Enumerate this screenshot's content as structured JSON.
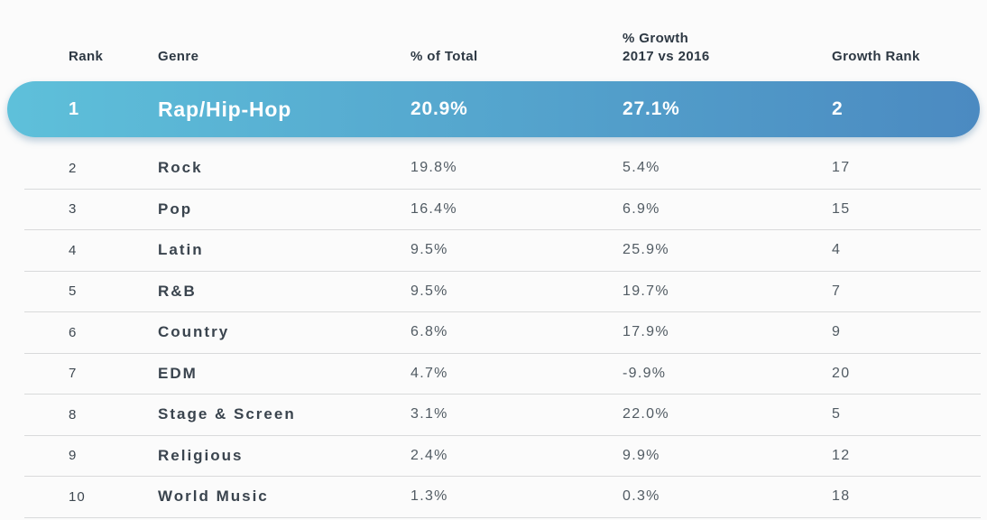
{
  "table": {
    "headers": {
      "rank": "Rank",
      "genre": "Genre",
      "pct_total": "% of Total",
      "growth_line1": "% Growth",
      "growth_line2": "2017 vs 2016",
      "growth_rank": "Growth Rank"
    },
    "highlight": {
      "rank": "1",
      "genre": "Rap/Hip-Hop",
      "pct_total": "20.9%",
      "growth": "27.1%",
      "growth_rank": "2"
    },
    "rows": [
      {
        "rank": "2",
        "genre": "Rock",
        "pct_total": "19.8%",
        "growth": "5.4%",
        "growth_rank": "17"
      },
      {
        "rank": "3",
        "genre": "Pop",
        "pct_total": "16.4%",
        "growth": "6.9%",
        "growth_rank": "15"
      },
      {
        "rank": "4",
        "genre": "Latin",
        "pct_total": "9.5%",
        "growth": "25.9%",
        "growth_rank": "4"
      },
      {
        "rank": "5",
        "genre": "R&B",
        "pct_total": "9.5%",
        "growth": "19.7%",
        "growth_rank": "7"
      },
      {
        "rank": "6",
        "genre": "Country",
        "pct_total": "6.8%",
        "growth": "17.9%",
        "growth_rank": "9"
      },
      {
        "rank": "7",
        "genre": "EDM",
        "pct_total": "4.7%",
        "growth": "-9.9%",
        "growth_rank": "20"
      },
      {
        "rank": "8",
        "genre": "Stage & Screen",
        "pct_total": "3.1%",
        "growth": "22.0%",
        "growth_rank": "5"
      },
      {
        "rank": "9",
        "genre": "Religious",
        "pct_total": "2.4%",
        "growth": "9.9%",
        "growth_rank": "12"
      },
      {
        "rank": "10",
        "genre": "World Music",
        "pct_total": "1.3%",
        "growth": "0.3%",
        "growth_rank": "18"
      }
    ]
  },
  "colors": {
    "background": "#fbfbfb",
    "highlight_gradient_start": "#5ec0da",
    "highlight_gradient_end": "#4b8ac1",
    "highlight_text": "#ffffff",
    "header_text": "#2d3843",
    "genre_text": "#3a444e",
    "value_text": "#515b63",
    "divider": "#d9dadb"
  },
  "chart_data": {
    "type": "table",
    "title": "",
    "columns": [
      "Rank",
      "Genre",
      "% of Total",
      "% Growth 2017 vs 2016",
      "Growth Rank"
    ],
    "rows": [
      [
        1,
        "Rap/Hip-Hop",
        20.9,
        27.1,
        2
      ],
      [
        2,
        "Rock",
        19.8,
        5.4,
        17
      ],
      [
        3,
        "Pop",
        16.4,
        6.9,
        15
      ],
      [
        4,
        "Latin",
        9.5,
        25.9,
        4
      ],
      [
        5,
        "R&B",
        9.5,
        19.7,
        7
      ],
      [
        6,
        "Country",
        6.8,
        17.9,
        9
      ],
      [
        7,
        "EDM",
        4.7,
        -9.9,
        20
      ],
      [
        8,
        "Stage & Screen",
        3.1,
        22.0,
        5
      ],
      [
        9,
        "Religious",
        2.4,
        9.9,
        12
      ],
      [
        10,
        "World Music",
        1.3,
        0.3,
        18
      ]
    ],
    "highlighted_row_rank": 1,
    "layout_hints": {
      "highlight_style": "blue gradient rounded pill",
      "grid": "horizontal dividers only"
    }
  }
}
